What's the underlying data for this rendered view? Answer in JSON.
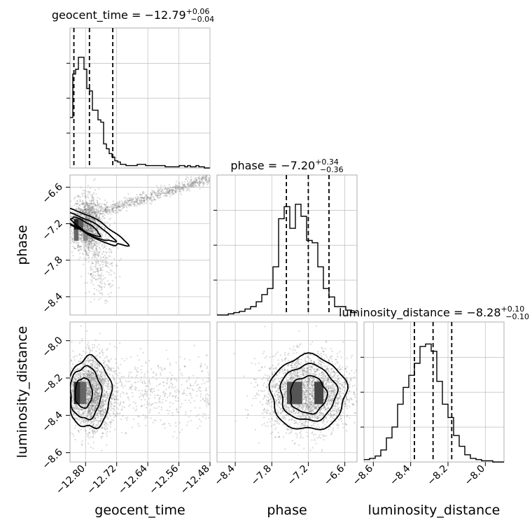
{
  "chart_data": {
    "type": "corner",
    "parameters": [
      "geocent_time",
      "phase",
      "luminosity_distance"
    ],
    "titles": [
      {
        "param": "geocent_time",
        "prefix": "geocent_time = ",
        "median": "−12.79",
        "plus": "+0.06",
        "minus": "−0.04"
      },
      {
        "param": "phase",
        "prefix": "phase = ",
        "median": "−7.20",
        "plus": "+0.34",
        "minus": "−0.36"
      },
      {
        "param": "luminosity_distance",
        "prefix": "luminosity_distance = ",
        "median": "−8.28",
        "plus": "+0.10",
        "minus": "−0.10"
      }
    ],
    "axes": {
      "geocent_time": {
        "range": [
          -12.84,
          -12.48
        ],
        "ticks": [
          -12.8,
          -12.72,
          -12.64,
          -12.56,
          -12.48
        ],
        "tick_labels": [
          "−12.80",
          "−12.72",
          "−12.64",
          "−12.56",
          "−12.48"
        ]
      },
      "phase": {
        "range": [
          -8.7,
          -6.4
        ],
        "ticks": [
          -8.4,
          -7.8,
          -7.2,
          -6.6
        ],
        "tick_labels": [
          "−8.4",
          "−7.8",
          "−7.2",
          "−6.6"
        ]
      },
      "luminosity_distance": {
        "range": [
          -8.65,
          -7.9
        ],
        "ticks": [
          -8.6,
          -8.4,
          -8.2,
          -8.0
        ],
        "tick_labels": [
          "−8.6",
          "−8.4",
          "−8.2",
          "−8.0"
        ]
      }
    },
    "quantiles": {
      "geocent_time": [
        -12.83,
        -12.79,
        -12.73
      ],
      "phase": [
        -7.56,
        -7.2,
        -6.86
      ],
      "luminosity_distance": [
        -8.38,
        -8.28,
        -8.18
      ]
    },
    "histograms": {
      "geocent_time": {
        "edges_min": -12.84,
        "bin_width": 0.0072,
        "counts": [
          0.42,
          0.78,
          0.82,
          0.92,
          0.92,
          0.82,
          0.66,
          0.64,
          0.48,
          0.48,
          0.4,
          0.38,
          0.2,
          0.16,
          0.12,
          0.09,
          0.06,
          0.05,
          0.03,
          0.03,
          0.02,
          0.02,
          0.02,
          0.02,
          0.03,
          0.03,
          0.03,
          0.02,
          0.02,
          0.02,
          0.02,
          0.02,
          0.02,
          0.02,
          0.01,
          0.01,
          0.01,
          0.01,
          0.01,
          0.02,
          0.02,
          0.01,
          0.02,
          0.01,
          0.01,
          0.02,
          0.01,
          0.01,
          0.0,
          0.0
        ]
      },
      "phase": {
        "edges_min": -8.7,
        "bin_width": 0.092,
        "counts": [
          0.0,
          0.0,
          0.01,
          0.02,
          0.03,
          0.05,
          0.07,
          0.11,
          0.17,
          0.22,
          0.4,
          0.8,
          0.9,
          0.72,
          0.92,
          0.82,
          0.62,
          0.6,
          0.4,
          0.22,
          0.15,
          0.07,
          0.07,
          0.04,
          0.02
        ]
      },
      "luminosity_distance": {
        "edges_min": -8.65,
        "bin_width": 0.03,
        "counts": [
          0.02,
          0.03,
          0.05,
          0.1,
          0.2,
          0.29,
          0.48,
          0.62,
          0.72,
          0.82,
          0.96,
          0.98,
          0.92,
          0.67,
          0.48,
          0.37,
          0.22,
          0.13,
          0.06,
          0.03,
          0.02,
          0.01,
          0.01,
          0.0,
          0.0
        ]
      }
    },
    "grid": true
  }
}
